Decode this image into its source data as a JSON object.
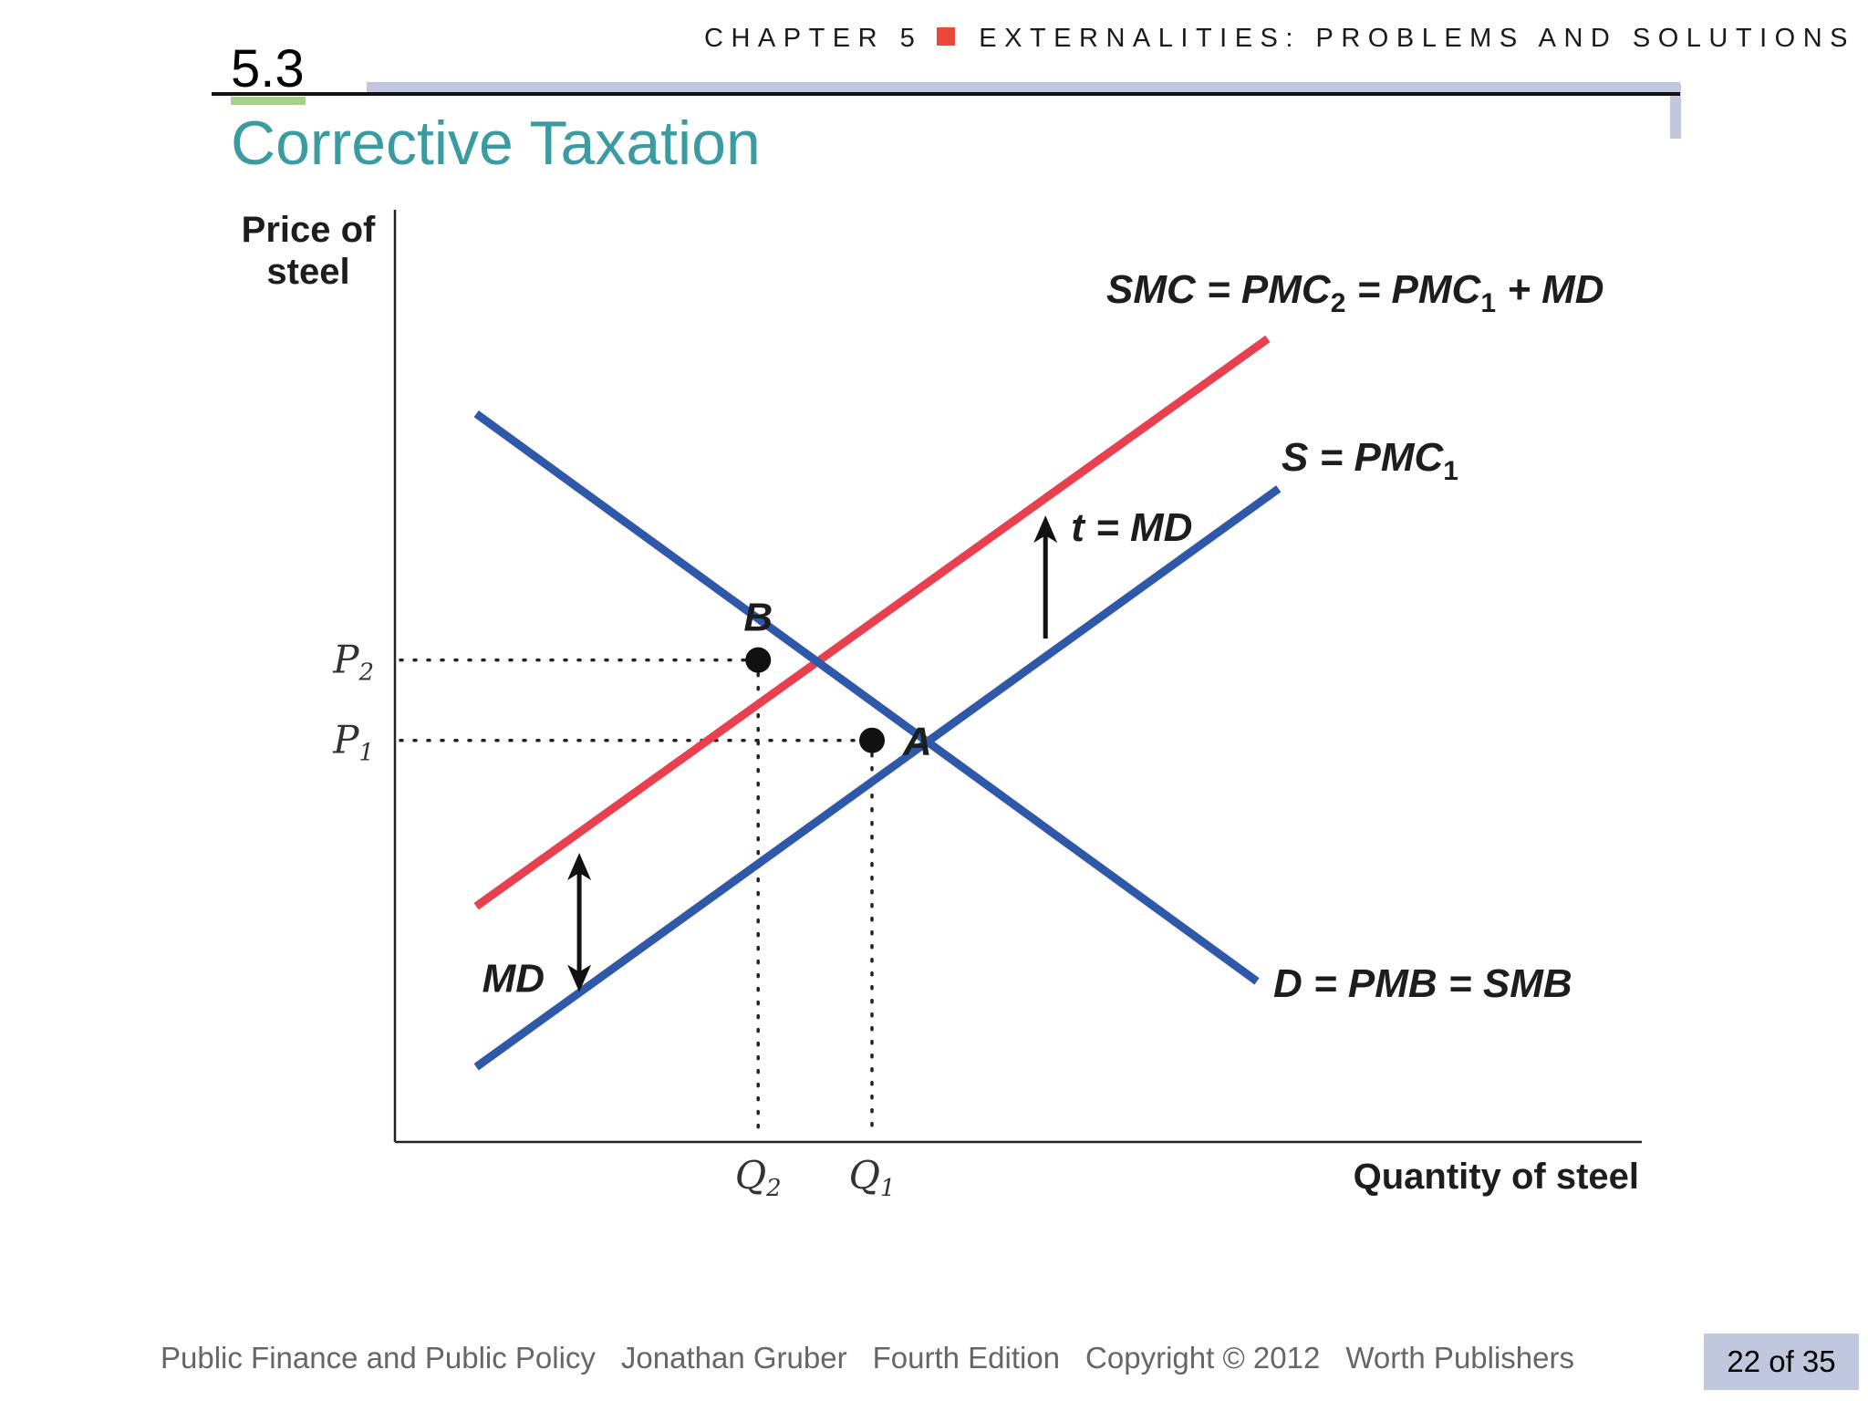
{
  "header": {
    "chapter": "CHAPTER 5",
    "chapter_title": "EXTERNALITIES: PROBLEMS AND SOLUTIONS"
  },
  "section_number": "5.3",
  "slide_title": "Corrective Taxation",
  "chart_data": {
    "type": "line",
    "title": "",
    "xlabel": "Quantity of steel",
    "ylabel_line1": "Price of",
    "ylabel_line2": "steel",
    "x_ticks": [
      {
        "main": "Q",
        "sub": "2",
        "x": 3.35
      },
      {
        "main": "Q",
        "sub": "1",
        "x": 4.4
      }
    ],
    "y_ticks": [
      {
        "main": "P",
        "sub": "2",
        "y": 4.5
      },
      {
        "main": "P",
        "sub": "1",
        "y": 3.75
      }
    ],
    "xlim": [
      0,
      11.5
    ],
    "ylim": [
      0,
      8.5
    ],
    "series": [
      {
        "name": "SMC = PMC2 = PMC1 + MD",
        "label_parts": [
          {
            "t": "SMC = PMC",
            "sub": false
          },
          {
            "t": "2",
            "sub": true
          },
          {
            "t": " = PMC",
            "sub": false
          },
          {
            "t": "1",
            "sub": true
          },
          {
            "t": " + MD",
            "sub": false
          }
        ],
        "color": "#e8404f",
        "points": [
          [
            0.75,
            2.2
          ],
          [
            8.05,
            7.5
          ]
        ]
      },
      {
        "name": "S = PMC1",
        "label_parts": [
          {
            "t": "S = PMC",
            "sub": false
          },
          {
            "t": "1",
            "sub": true
          }
        ],
        "color": "#2f59a8",
        "points": [
          [
            0.75,
            0.7
          ],
          [
            8.15,
            6.1
          ]
        ]
      },
      {
        "name": "D = PMB = SMB",
        "label_parts": [
          {
            "t": "D = PMB = SMB",
            "sub": false
          }
        ],
        "color": "#2f59a8",
        "points": [
          [
            0.75,
            6.8
          ],
          [
            7.95,
            1.5
          ]
        ]
      }
    ],
    "points": [
      {
        "label": "B",
        "x": 3.35,
        "y": 4.5
      },
      {
        "label": "A",
        "x": 4.4,
        "y": 3.75
      }
    ],
    "annotations": [
      {
        "text": "t = MD",
        "type": "up-arrow",
        "x": 6.0,
        "y_from": 4.7,
        "y_to": 5.85
      },
      {
        "text": "MD",
        "type": "double-arrow",
        "x": 1.7,
        "y_from": 1.4,
        "y_to": 2.7
      }
    ]
  },
  "footer": {
    "book": "Public Finance and Public Policy",
    "author": "Jonathan Gruber",
    "edition": "Fourth Edition",
    "copyright": "Copyright © 2012",
    "publisher": "Worth Publishers"
  },
  "page": {
    "label": "22 of 35"
  }
}
